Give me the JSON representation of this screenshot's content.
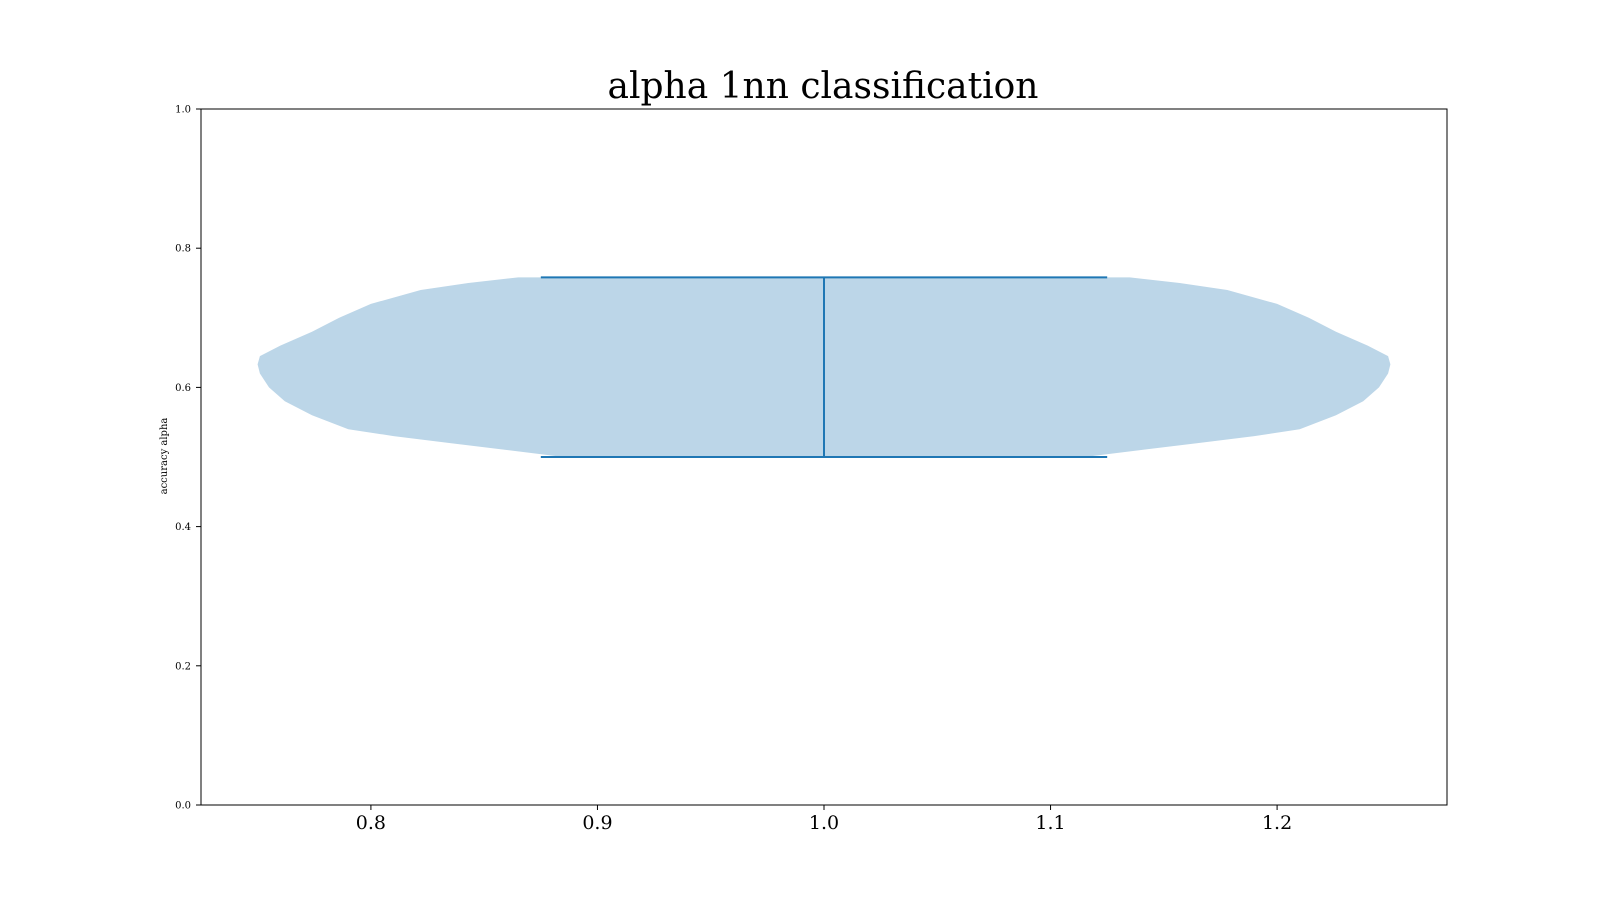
{
  "chart_data": {
    "type": "violin",
    "title": "alpha 1nn classification",
    "xlabel": "",
    "ylabel": "accuracy alpha",
    "xlim": [
      0.725,
      1.275
    ],
    "ylim": [
      0.0,
      1.0
    ],
    "xticks": [
      "0.8",
      "0.9",
      "1.0",
      "1.1",
      "1.2"
    ],
    "yticks": [
      "0.0",
      "0.2",
      "0.4",
      "0.6",
      "0.8",
      "1.0"
    ],
    "grid": false,
    "colors": {
      "body": "#bcd6e8",
      "lines": "#1f77b4"
    },
    "violins": [
      {
        "position": 1.0,
        "min": 0.5,
        "max": 0.758,
        "whisker_width": 0.25,
        "max_half_width": 0.25,
        "density": [
          [
            0.5,
            0.115
          ],
          [
            0.51,
            0.14
          ],
          [
            0.52,
            0.165
          ],
          [
            0.53,
            0.19
          ],
          [
            0.54,
            0.21
          ],
          [
            0.56,
            0.226
          ],
          [
            0.58,
            0.238
          ],
          [
            0.6,
            0.245
          ],
          [
            0.62,
            0.249
          ],
          [
            0.633,
            0.25
          ],
          [
            0.645,
            0.249
          ],
          [
            0.66,
            0.24
          ],
          [
            0.68,
            0.226
          ],
          [
            0.7,
            0.214
          ],
          [
            0.72,
            0.2
          ],
          [
            0.74,
            0.178
          ],
          [
            0.75,
            0.157
          ],
          [
            0.758,
            0.135
          ]
        ]
      }
    ]
  }
}
